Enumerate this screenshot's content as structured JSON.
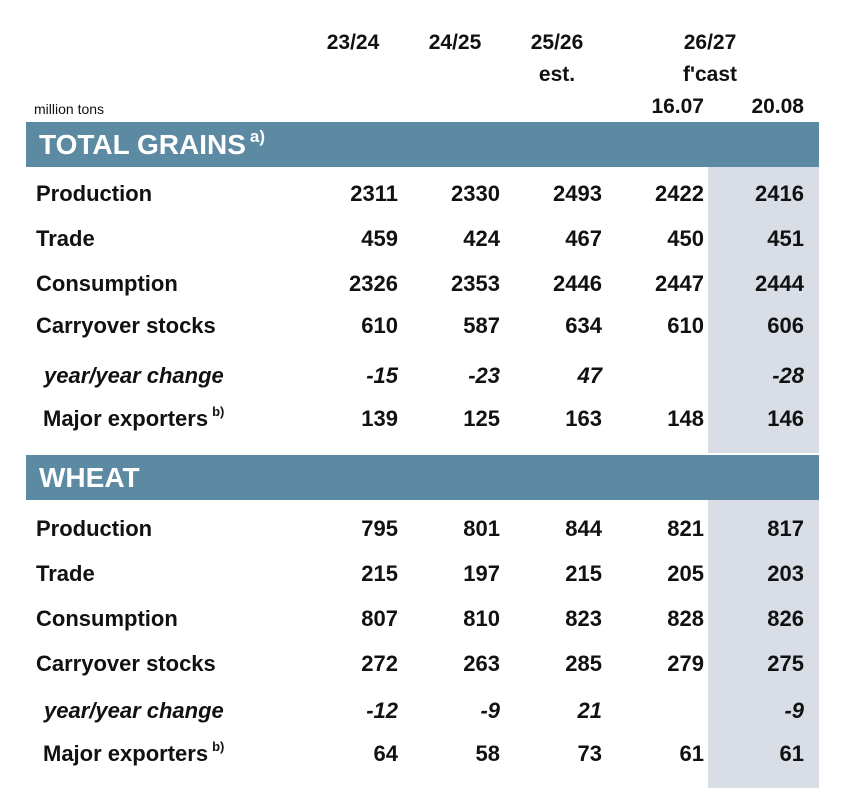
{
  "columns": {
    "c1": "23/24",
    "c2": "24/25",
    "c3": "25/26",
    "c3_sub": "est.",
    "c4": "26/27",
    "c4_sub": "f'cast",
    "c4_a": "16.07",
    "c4_b": "20.08"
  },
  "unit": "million tons",
  "sections": [
    {
      "title": "TOTAL GRAINS",
      "title_note": "a)",
      "rows": [
        {
          "label": "Production",
          "values": [
            "2311",
            "2330",
            "2493",
            "2422",
            "2416"
          ]
        },
        {
          "label": "Trade",
          "values": [
            "459",
            "424",
            "467",
            "450",
            "451"
          ]
        },
        {
          "label": "Consumption",
          "values": [
            "2326",
            "2353",
            "2446",
            "2447",
            "2444"
          ]
        },
        {
          "label": "Carryover stocks",
          "values": [
            "610",
            "587",
            "634",
            "610",
            "606"
          ]
        },
        {
          "label": "year/year change",
          "values": [
            "-15",
            "-23",
            "47",
            "",
            "-28"
          ]
        },
        {
          "label": "Major exporters",
          "note": "b)",
          "values": [
            "139",
            "125",
            "163",
            "148",
            "146"
          ]
        }
      ]
    },
    {
      "title": "WHEAT",
      "rows": [
        {
          "label": "Production",
          "values": [
            "795",
            "801",
            "844",
            "821",
            "817"
          ]
        },
        {
          "label": "Trade",
          "values": [
            "215",
            "197",
            "215",
            "205",
            "203"
          ]
        },
        {
          "label": "Consumption",
          "values": [
            "807",
            "810",
            "823",
            "828",
            "826"
          ]
        },
        {
          "label": "Carryover stocks",
          "values": [
            "272",
            "263",
            "285",
            "279",
            "275"
          ]
        },
        {
          "label": "year/year change",
          "values": [
            "-12",
            "-9",
            "21",
            "",
            "-9"
          ]
        },
        {
          "label": "Major exporters",
          "note": "b)",
          "values": [
            "64",
            "58",
            "73",
            "61",
            "61"
          ]
        }
      ]
    }
  ],
  "colors": {
    "band": "#5d8aa3",
    "highlight": "#d9dde6"
  }
}
